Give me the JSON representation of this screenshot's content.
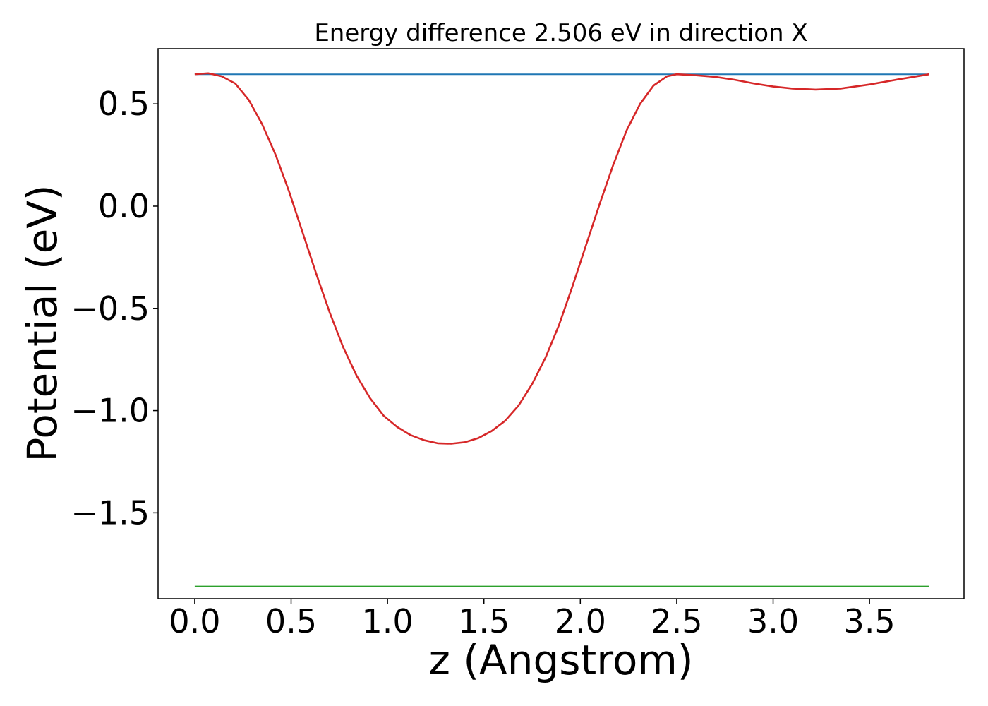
{
  "chart_data": {
    "type": "line",
    "title": "Energy difference 2.506 eV in direction X",
    "xlabel": "z (Angstrom)",
    "ylabel": "Potential (eV)",
    "xlim": [
      -0.19,
      3.99
    ],
    "ylim": [
      -1.92,
      0.77
    ],
    "xticks": [
      0.0,
      0.5,
      1.0,
      1.5,
      2.0,
      2.5,
      3.0,
      3.5
    ],
    "xtick_labels": [
      "0.0",
      "0.5",
      "1.0",
      "1.5",
      "2.0",
      "2.5",
      "3.0",
      "3.5"
    ],
    "yticks": [
      0.5,
      0.0,
      -0.5,
      -1.0,
      -1.5
    ],
    "ytick_labels": [
      "0.5",
      "0.0",
      "−0.5",
      "−1.0",
      "−1.5"
    ],
    "grid": false,
    "series": [
      {
        "color": "#1f77b4",
        "x": [
          0.0,
          3.81
        ],
        "y": [
          0.645,
          0.645
        ]
      },
      {
        "color": "#2ca02c",
        "x": [
          0.0,
          3.81
        ],
        "y": [
          -1.86,
          -1.86
        ]
      },
      {
        "color": "#d62728",
        "x": [
          0.0,
          0.07,
          0.14,
          0.21,
          0.28,
          0.35,
          0.42,
          0.49,
          0.56,
          0.63,
          0.7,
          0.77,
          0.84,
          0.91,
          0.98,
          1.05,
          1.12,
          1.19,
          1.26,
          1.33,
          1.4,
          1.47,
          1.54,
          1.61,
          1.68,
          1.75,
          1.82,
          1.89,
          1.96,
          2.03,
          2.1,
          2.17,
          2.24,
          2.31,
          2.38,
          2.45,
          2.5,
          2.6,
          2.7,
          2.8,
          2.9,
          3.0,
          3.1,
          3.22,
          3.35,
          3.5,
          3.65,
          3.81
        ],
        "y": [
          0.645,
          0.65,
          0.635,
          0.6,
          0.52,
          0.4,
          0.25,
          0.07,
          -0.13,
          -0.33,
          -0.52,
          -0.69,
          -0.83,
          -0.94,
          -1.025,
          -1.08,
          -1.12,
          -1.145,
          -1.16,
          -1.162,
          -1.155,
          -1.135,
          -1.1,
          -1.05,
          -0.975,
          -0.87,
          -0.74,
          -0.58,
          -0.39,
          -0.19,
          0.01,
          0.2,
          0.37,
          0.5,
          0.59,
          0.635,
          0.645,
          0.64,
          0.632,
          0.618,
          0.6,
          0.585,
          0.575,
          0.57,
          0.575,
          0.595,
          0.62,
          0.645
        ]
      }
    ]
  }
}
